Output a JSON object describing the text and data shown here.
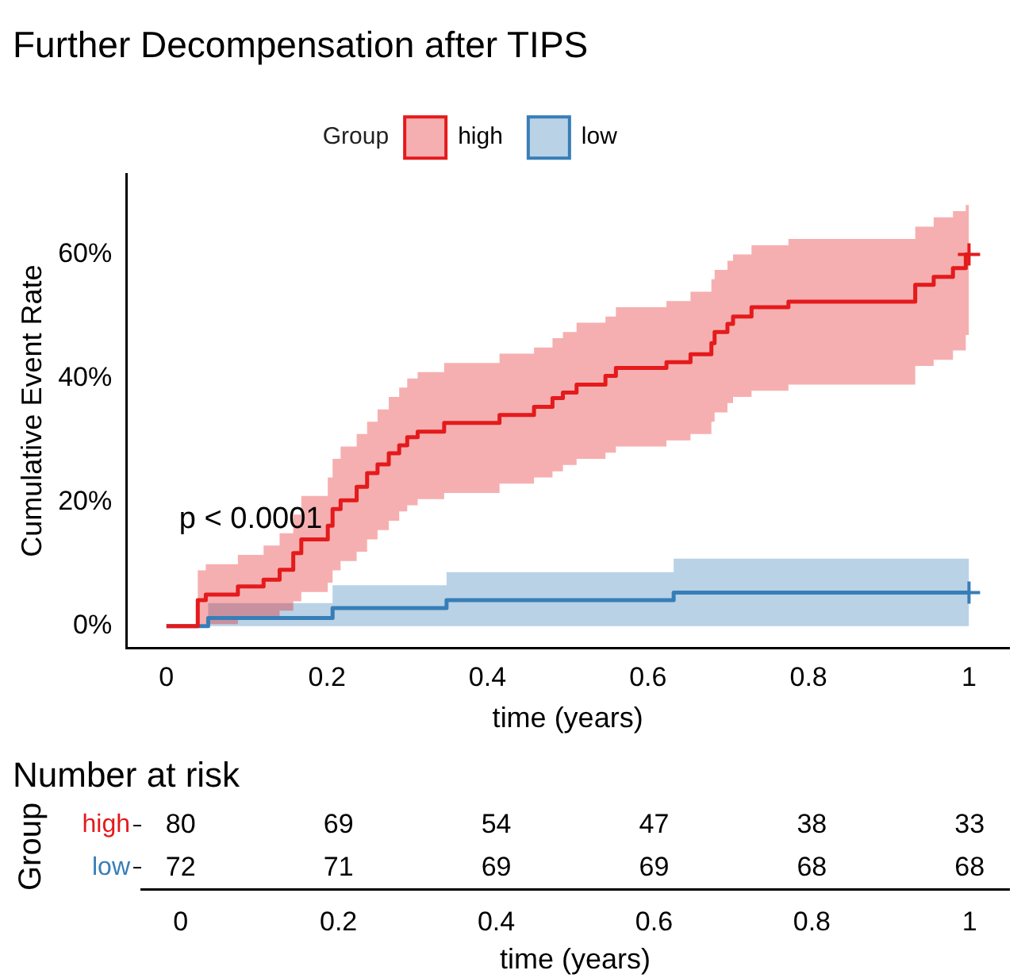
{
  "chart_data": [
    {
      "type": "step",
      "title": "Further Decompensation after TIPS",
      "xlabel": "time (years)",
      "ylabel": "Cumulative Event Rate",
      "legend_title": "Group",
      "legend": "top",
      "grid": false,
      "xlim": [
        -0.05,
        1.05
      ],
      "xticks": [
        0,
        0.2,
        0.4,
        0.6,
        0.8,
        1
      ],
      "ylim": [
        -3.5,
        73
      ],
      "yticks": [
        {
          "value": 0,
          "label": "0%"
        },
        {
          "value": 20,
          "label": "20%"
        },
        {
          "value": 40,
          "label": "40%"
        },
        {
          "value": 60,
          "label": "60%"
        }
      ],
      "annotations": [
        "p < 0.0001"
      ],
      "series": [
        {
          "name": "high",
          "color": "#e41a1c",
          "marker": "none",
          "x": [
            0,
            0.032,
            0.039,
            0.049,
            0.089,
            0.121,
            0.141,
            0.158,
            0.168,
            0.201,
            0.207,
            0.217,
            0.237,
            0.25,
            0.263,
            0.277,
            0.29,
            0.3,
            0.313,
            0.346,
            0.415,
            0.458,
            0.481,
            0.494,
            0.511,
            0.547,
            0.56,
            0.623,
            0.653,
            0.679,
            0.683,
            0.699,
            0.706,
            0.729,
            0.775,
            0.933,
            0.956,
            0.98,
            0.996,
            1.0
          ],
          "values": [
            0,
            0,
            4.2,
            5.1,
            6.4,
            7.5,
            9.1,
            11.8,
            14.0,
            16.2,
            18.9,
            20.3,
            22.5,
            24.7,
            26.1,
            27.9,
            29.2,
            30.5,
            31.4,
            32.8,
            34.1,
            35.4,
            36.8,
            37.7,
            39.0,
            40.4,
            41.7,
            42.6,
            43.9,
            45.7,
            47.5,
            48.8,
            50.0,
            51.5,
            52.4,
            55.1,
            56.4,
            57.8,
            60.0,
            60.0
          ],
          "lower": [
            0,
            0,
            0,
            0.3,
            1,
            1.5,
            2.5,
            4,
            5.5,
            7,
            9,
            10.5,
            12,
            14,
            15.5,
            17,
            18.5,
            19.5,
            20.5,
            21.5,
            23,
            24,
            25,
            26,
            27,
            28,
            29,
            30,
            31,
            33,
            34.5,
            36,
            37,
            38,
            39,
            42,
            43,
            44.5,
            47,
            47
          ],
          "upper": [
            0,
            0,
            9,
            10,
            11.5,
            13,
            15,
            18,
            21,
            24,
            27,
            29,
            31,
            33,
            35,
            37,
            38.5,
            40,
            41,
            42.5,
            44,
            45,
            46.5,
            47.5,
            49,
            50,
            51.5,
            52.5,
            54,
            56,
            57.5,
            59,
            60,
            61.5,
            62.5,
            64.5,
            66,
            67,
            68,
            68
          ]
        },
        {
          "name": "low",
          "color": "#377eb8",
          "marker": "none",
          "x": [
            0,
            0.052,
            0.207,
            0.349,
            0.632,
            1.0
          ],
          "values": [
            0,
            1.3,
            2.9,
            4.2,
            5.4,
            5.4
          ],
          "lower": [
            0,
            0,
            0,
            0,
            0,
            0
          ],
          "upper": [
            0,
            3.7,
            6.6,
            8.7,
            10.9,
            10.9
          ]
        },
        {
          "type": "scatter",
          "color": "#e41a1c",
          "marker": "cross",
          "x": [
            1.0
          ],
          "values": [
            60.0
          ]
        },
        {
          "type": "scatter",
          "color": "#377eb8",
          "marker": "cross",
          "x": [
            1.0
          ],
          "values": [
            5.4
          ]
        }
      ]
    },
    {
      "type": "heatmap",
      "title": "Number at risk",
      "xlabel": "time (years)",
      "ylabel": "Group",
      "categories": [
        "0",
        "0.2",
        "0.4",
        "0.6",
        "0.8",
        "1"
      ],
      "y_categories": [
        "high",
        "low"
      ],
      "cells": [
        [
          80,
          69,
          54,
          47,
          38,
          33
        ],
        [
          72,
          71,
          69,
          69,
          68,
          68
        ]
      ],
      "data_labels": true
    }
  ]
}
